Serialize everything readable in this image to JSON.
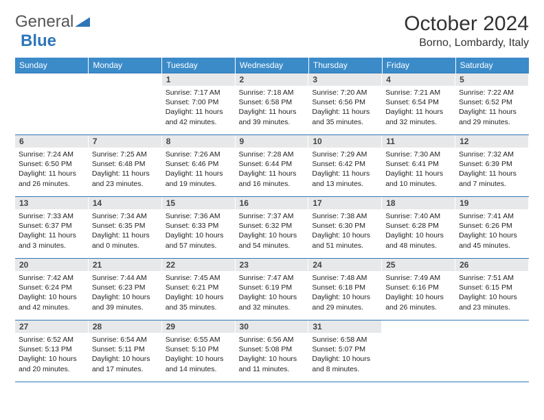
{
  "logo": {
    "general": "General",
    "blue": "Blue"
  },
  "title": {
    "month_year": "October 2024",
    "location": "Borno, Lombardy, Italy"
  },
  "weekdays": [
    "Sunday",
    "Monday",
    "Tuesday",
    "Wednesday",
    "Thursday",
    "Friday",
    "Saturday"
  ],
  "colors": {
    "header_bg": "#3b8bc9",
    "daynum_bg": "#e7e8e9",
    "border": "#2f76b8"
  },
  "weeks": [
    [
      null,
      null,
      {
        "n": "1",
        "sr": "Sunrise: 7:17 AM",
        "ss": "Sunset: 7:00 PM",
        "dl": "Daylight: 11 hours and 42 minutes."
      },
      {
        "n": "2",
        "sr": "Sunrise: 7:18 AM",
        "ss": "Sunset: 6:58 PM",
        "dl": "Daylight: 11 hours and 39 minutes."
      },
      {
        "n": "3",
        "sr": "Sunrise: 7:20 AM",
        "ss": "Sunset: 6:56 PM",
        "dl": "Daylight: 11 hours and 35 minutes."
      },
      {
        "n": "4",
        "sr": "Sunrise: 7:21 AM",
        "ss": "Sunset: 6:54 PM",
        "dl": "Daylight: 11 hours and 32 minutes."
      },
      {
        "n": "5",
        "sr": "Sunrise: 7:22 AM",
        "ss": "Sunset: 6:52 PM",
        "dl": "Daylight: 11 hours and 29 minutes."
      }
    ],
    [
      {
        "n": "6",
        "sr": "Sunrise: 7:24 AM",
        "ss": "Sunset: 6:50 PM",
        "dl": "Daylight: 11 hours and 26 minutes."
      },
      {
        "n": "7",
        "sr": "Sunrise: 7:25 AM",
        "ss": "Sunset: 6:48 PM",
        "dl": "Daylight: 11 hours and 23 minutes."
      },
      {
        "n": "8",
        "sr": "Sunrise: 7:26 AM",
        "ss": "Sunset: 6:46 PM",
        "dl": "Daylight: 11 hours and 19 minutes."
      },
      {
        "n": "9",
        "sr": "Sunrise: 7:28 AM",
        "ss": "Sunset: 6:44 PM",
        "dl": "Daylight: 11 hours and 16 minutes."
      },
      {
        "n": "10",
        "sr": "Sunrise: 7:29 AM",
        "ss": "Sunset: 6:42 PM",
        "dl": "Daylight: 11 hours and 13 minutes."
      },
      {
        "n": "11",
        "sr": "Sunrise: 7:30 AM",
        "ss": "Sunset: 6:41 PM",
        "dl": "Daylight: 11 hours and 10 minutes."
      },
      {
        "n": "12",
        "sr": "Sunrise: 7:32 AM",
        "ss": "Sunset: 6:39 PM",
        "dl": "Daylight: 11 hours and 7 minutes."
      }
    ],
    [
      {
        "n": "13",
        "sr": "Sunrise: 7:33 AM",
        "ss": "Sunset: 6:37 PM",
        "dl": "Daylight: 11 hours and 3 minutes."
      },
      {
        "n": "14",
        "sr": "Sunrise: 7:34 AM",
        "ss": "Sunset: 6:35 PM",
        "dl": "Daylight: 11 hours and 0 minutes."
      },
      {
        "n": "15",
        "sr": "Sunrise: 7:36 AM",
        "ss": "Sunset: 6:33 PM",
        "dl": "Daylight: 10 hours and 57 minutes."
      },
      {
        "n": "16",
        "sr": "Sunrise: 7:37 AM",
        "ss": "Sunset: 6:32 PM",
        "dl": "Daylight: 10 hours and 54 minutes."
      },
      {
        "n": "17",
        "sr": "Sunrise: 7:38 AM",
        "ss": "Sunset: 6:30 PM",
        "dl": "Daylight: 10 hours and 51 minutes."
      },
      {
        "n": "18",
        "sr": "Sunrise: 7:40 AM",
        "ss": "Sunset: 6:28 PM",
        "dl": "Daylight: 10 hours and 48 minutes."
      },
      {
        "n": "19",
        "sr": "Sunrise: 7:41 AM",
        "ss": "Sunset: 6:26 PM",
        "dl": "Daylight: 10 hours and 45 minutes."
      }
    ],
    [
      {
        "n": "20",
        "sr": "Sunrise: 7:42 AM",
        "ss": "Sunset: 6:24 PM",
        "dl": "Daylight: 10 hours and 42 minutes."
      },
      {
        "n": "21",
        "sr": "Sunrise: 7:44 AM",
        "ss": "Sunset: 6:23 PM",
        "dl": "Daylight: 10 hours and 39 minutes."
      },
      {
        "n": "22",
        "sr": "Sunrise: 7:45 AM",
        "ss": "Sunset: 6:21 PM",
        "dl": "Daylight: 10 hours and 35 minutes."
      },
      {
        "n": "23",
        "sr": "Sunrise: 7:47 AM",
        "ss": "Sunset: 6:19 PM",
        "dl": "Daylight: 10 hours and 32 minutes."
      },
      {
        "n": "24",
        "sr": "Sunrise: 7:48 AM",
        "ss": "Sunset: 6:18 PM",
        "dl": "Daylight: 10 hours and 29 minutes."
      },
      {
        "n": "25",
        "sr": "Sunrise: 7:49 AM",
        "ss": "Sunset: 6:16 PM",
        "dl": "Daylight: 10 hours and 26 minutes."
      },
      {
        "n": "26",
        "sr": "Sunrise: 7:51 AM",
        "ss": "Sunset: 6:15 PM",
        "dl": "Daylight: 10 hours and 23 minutes."
      }
    ],
    [
      {
        "n": "27",
        "sr": "Sunrise: 6:52 AM",
        "ss": "Sunset: 5:13 PM",
        "dl": "Daylight: 10 hours and 20 minutes."
      },
      {
        "n": "28",
        "sr": "Sunrise: 6:54 AM",
        "ss": "Sunset: 5:11 PM",
        "dl": "Daylight: 10 hours and 17 minutes."
      },
      {
        "n": "29",
        "sr": "Sunrise: 6:55 AM",
        "ss": "Sunset: 5:10 PM",
        "dl": "Daylight: 10 hours and 14 minutes."
      },
      {
        "n": "30",
        "sr": "Sunrise: 6:56 AM",
        "ss": "Sunset: 5:08 PM",
        "dl": "Daylight: 10 hours and 11 minutes."
      },
      {
        "n": "31",
        "sr": "Sunrise: 6:58 AM",
        "ss": "Sunset: 5:07 PM",
        "dl": "Daylight: 10 hours and 8 minutes."
      },
      null,
      null
    ]
  ]
}
